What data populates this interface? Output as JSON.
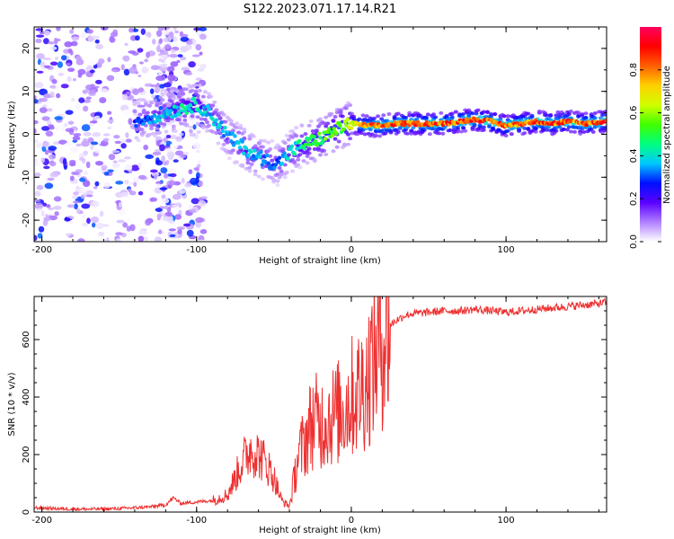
{
  "title": "S122.2023.071.17.14.R21",
  "chart_data": [
    {
      "type": "heatmap",
      "xlabel": "Height of straight line (km)",
      "ylabel": "Frequency (Hz)",
      "xlim": [
        -205,
        165
      ],
      "ylim": [
        -25,
        25
      ],
      "xticks": [
        -200,
        -100,
        0,
        100
      ],
      "yticks": [
        -20,
        -10,
        0,
        10,
        20
      ],
      "colorbar": {
        "label": "Normalized spectral amplitude",
        "range": [
          0,
          1
        ],
        "ticks": [
          "0.0",
          "0.2",
          "0.4",
          "0.6",
          "0.8"
        ],
        "colors": [
          "#ffffff",
          "#b080ff",
          "#5a00ff",
          "#0010ff",
          "#00c8ff",
          "#00ff80",
          "#40ff00",
          "#d0ff00",
          "#ffd000",
          "#ff6000",
          "#ff0000",
          "#ff0060"
        ]
      },
      "ridge": {
        "x": [
          -140,
          -130,
          -120,
          -110,
          -100,
          -92,
          -85,
          -78,
          -70,
          -62,
          -55,
          -48,
          -42,
          -35,
          -28,
          -20,
          -12,
          -5,
          0,
          10,
          20,
          30,
          40,
          50,
          60,
          70,
          80,
          90,
          100,
          110,
          120,
          130,
          140,
          150,
          165
        ],
        "freq": [
          3,
          4,
          5,
          6,
          7,
          5,
          2,
          -1,
          -3,
          -5,
          -6,
          -7,
          -5,
          -3,
          -2,
          -1,
          0.5,
          2,
          2.5,
          2,
          2,
          2.5,
          2.5,
          2.5,
          2.5,
          3,
          3.5,
          3,
          2,
          2.5,
          3,
          2.5,
          3,
          2.5,
          3
        ],
        "amplitude": [
          0.3,
          0.35,
          0.4,
          0.45,
          0.45,
          0.4,
          0.38,
          0.38,
          0.4,
          0.38,
          0.36,
          0.34,
          0.4,
          0.45,
          0.5,
          0.55,
          0.6,
          0.6,
          0.7,
          0.85,
          0.88,
          0.9,
          0.9,
          0.9,
          0.9,
          0.9,
          0.92,
          0.9,
          0.88,
          0.88,
          0.9,
          0.88,
          0.88,
          0.88,
          0.9
        ]
      }
    },
    {
      "type": "line",
      "xlabel": "Height of straight line (km)",
      "ylabel": "SNR (10 * v/v)",
      "xlim": [
        -205,
        165
      ],
      "ylim": [
        0,
        750
      ],
      "xticks": [
        -200,
        -100,
        0,
        100
      ],
      "yticks": [
        0,
        200,
        400,
        600
      ],
      "color": "#ee3030",
      "x": [
        -205,
        -190,
        -170,
        -150,
        -130,
        -120,
        -115,
        -110,
        -100,
        -90,
        -80,
        -75,
        -70,
        -65,
        -60,
        -55,
        -50,
        -45,
        -40,
        -38,
        -35,
        -30,
        -25,
        -20,
        -15,
        -10,
        -5,
        0,
        5,
        10,
        15,
        20,
        25,
        30,
        35,
        40,
        50,
        60,
        70,
        80,
        90,
        100,
        110,
        120,
        130,
        140,
        150,
        160,
        165
      ],
      "y": [
        15,
        12,
        10,
        12,
        18,
        25,
        50,
        30,
        35,
        40,
        60,
        120,
        180,
        220,
        200,
        170,
        120,
        40,
        20,
        80,
        180,
        250,
        320,
        310,
        330,
        340,
        360,
        400,
        420,
        460,
        550,
        610,
        650,
        670,
        685,
        690,
        695,
        700,
        700,
        705,
        700,
        695,
        700,
        705,
        710,
        715,
        720,
        725,
        730
      ]
    }
  ]
}
